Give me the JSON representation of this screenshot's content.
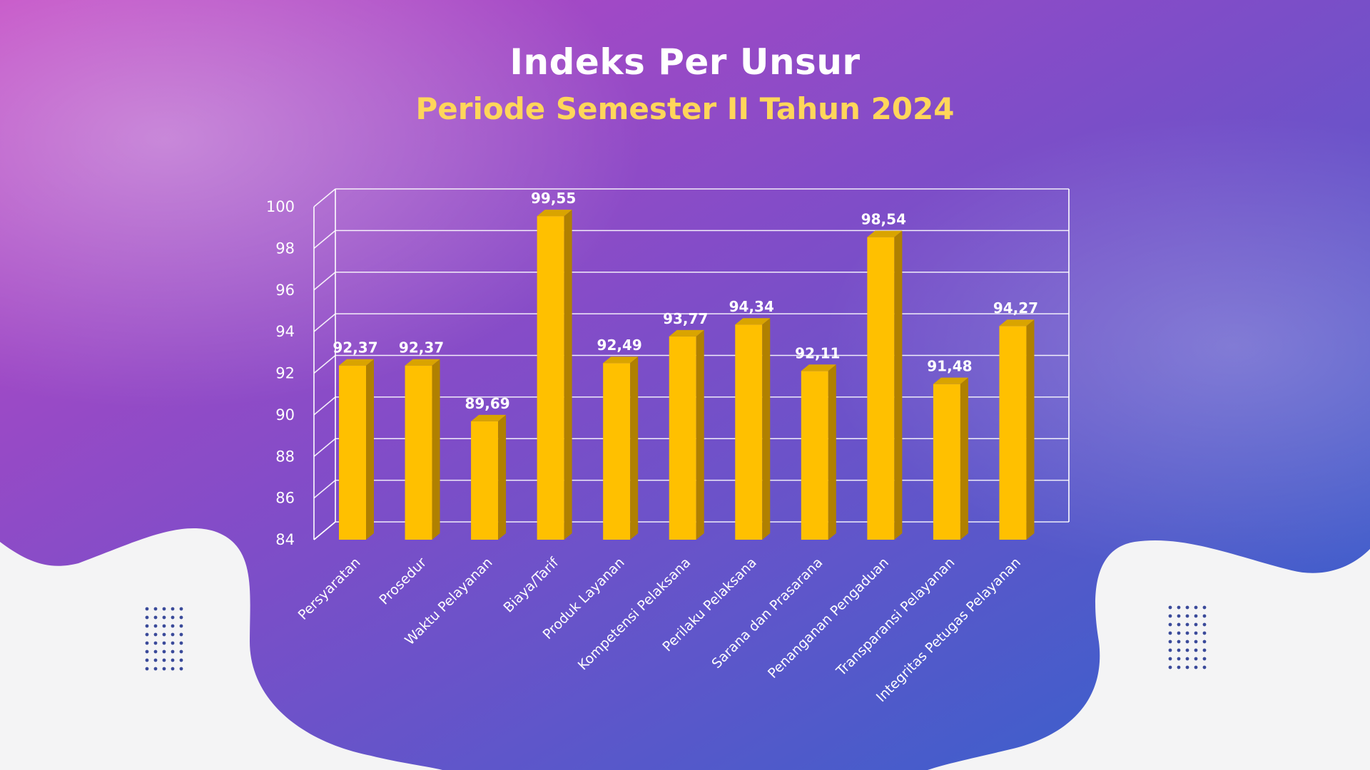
{
  "header": {
    "title": "Indeks Per Unsur",
    "subtitle": "Periode Semester II Tahun 2024"
  },
  "colors": {
    "bar_front": "#ffc000",
    "bar_side": "#b08000",
    "bar_top": "#d9a400",
    "gridline": "#ffffff",
    "title": "#ffffff",
    "subtitle": "#ffd65a",
    "background_start": "#b041c1",
    "background_end": "#3a63c9",
    "blob": "#f4f4f5"
  },
  "chart_data": {
    "type": "bar",
    "three_d": true,
    "categories": [
      "Persyaratan",
      "Prosedur",
      "Waktu Pelayanan",
      "Biaya/Tarif",
      "Produk Layanan",
      "Kompetensi Pelaksana",
      "Perilaku Pelaksana",
      "Sarana dan Prasarana",
      "Penanganan Pengaduan",
      "Transparansi Pelayanan",
      "Integritas Petugas Pelayanan"
    ],
    "values": [
      92.37,
      92.37,
      89.69,
      99.55,
      92.49,
      93.77,
      94.34,
      92.11,
      98.54,
      91.48,
      94.27
    ],
    "value_labels": [
      "92,37",
      "92,37",
      "89,69",
      "99,55",
      "92,49",
      "93,77",
      "94,34",
      "92,11",
      "98,54",
      "91,48",
      "94,27"
    ],
    "ylim": [
      84,
      100
    ],
    "yticks": [
      84,
      86,
      88,
      90,
      92,
      94,
      96,
      98,
      100
    ],
    "grid": true,
    "legend": "none"
  }
}
